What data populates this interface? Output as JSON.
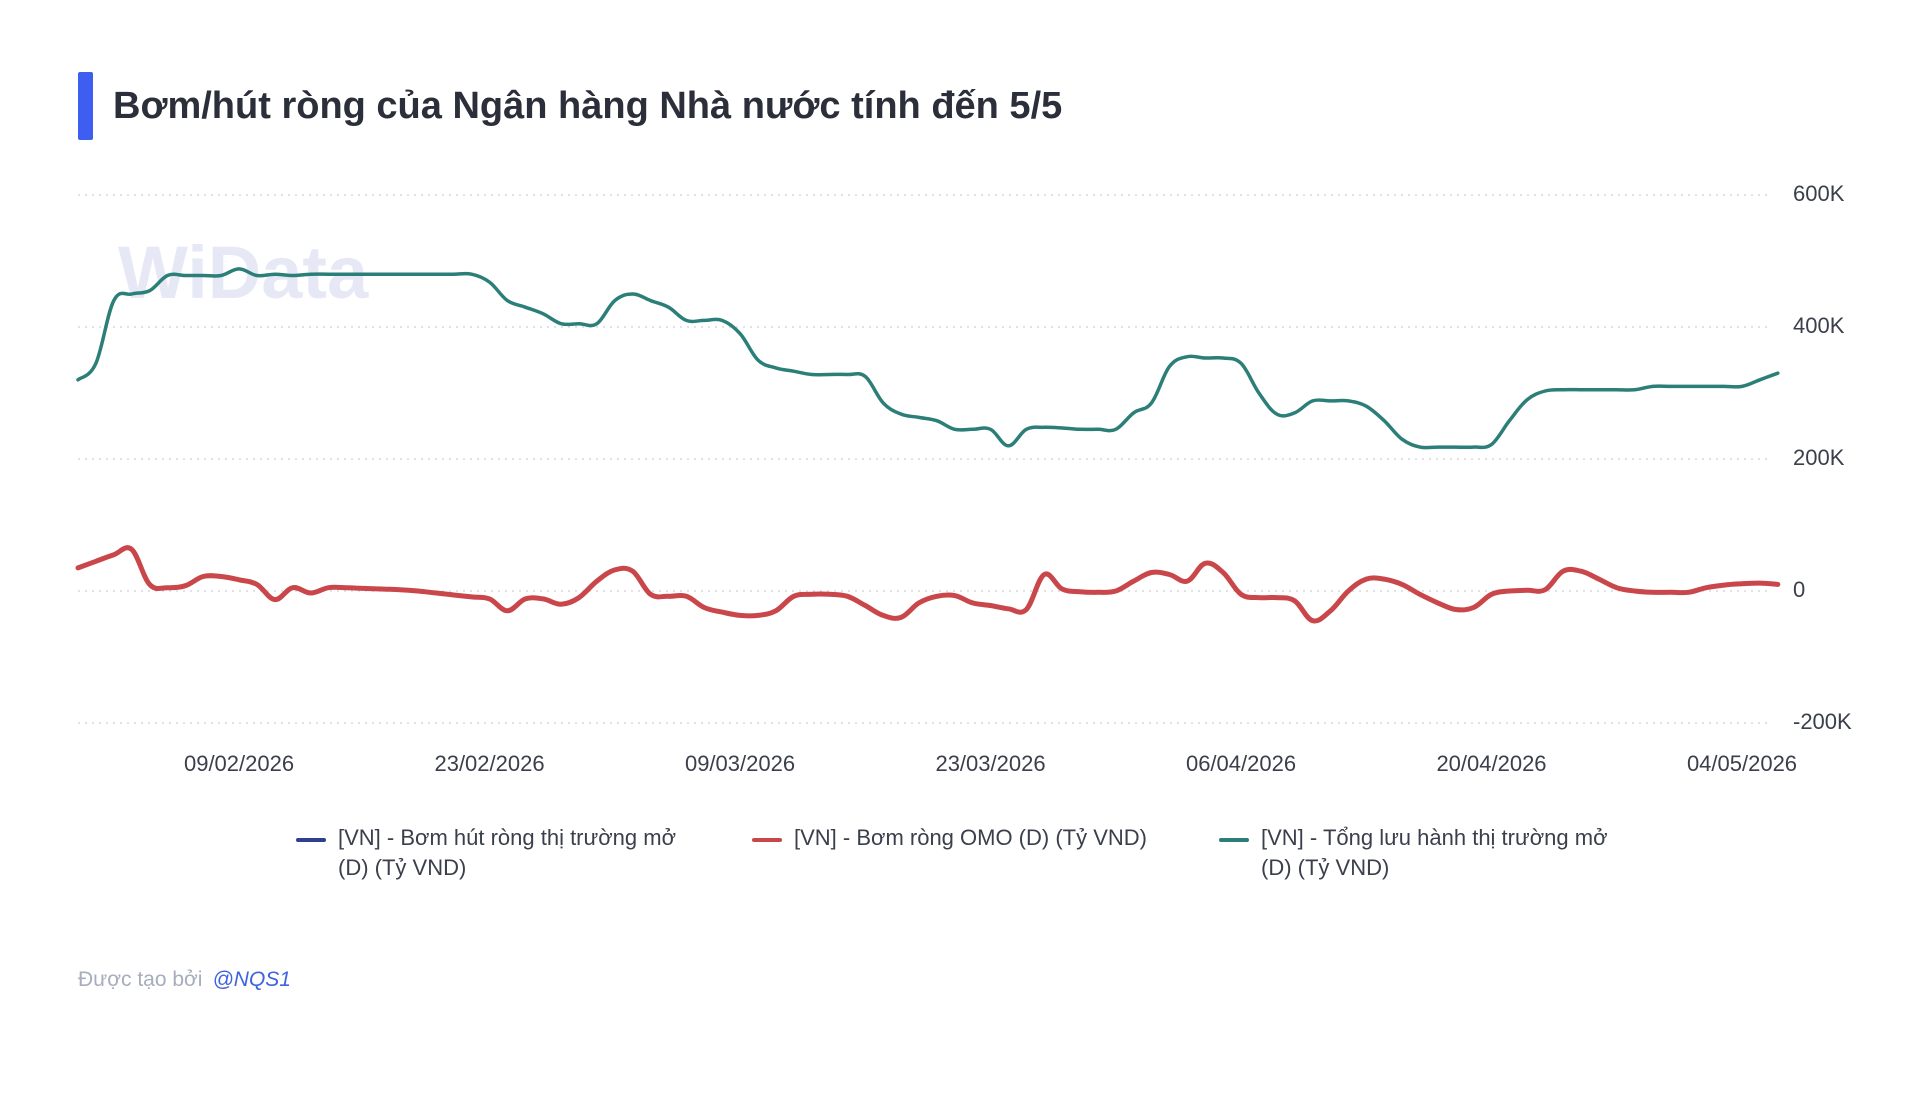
{
  "title": "Bơm/hút ròng của Ngân hàng Nhà nước tính đến 5/5",
  "colors": {
    "accent": "#3d5ef0",
    "series_net": "#2e3f8f",
    "series_omo": "#c9474a",
    "series_total": "#2b7f78",
    "grid": "#d6d9e0",
    "watermark": "#e6e9f5"
  },
  "watermark": "WiData",
  "legend": {
    "items": [
      {
        "label_line1": "[VN] - Bơm hút ròng thị trường mở",
        "label_line2": "(D) (Tỷ VND)"
      },
      {
        "label_line1": "[VN] - Bơm ròng OMO (D) (Tỷ VND)",
        "label_line2": ""
      },
      {
        "label_line1": "[VN] - Tổng lưu hành thị trường mở",
        "label_line2": "(D) (Tỷ VND)"
      }
    ]
  },
  "credit": {
    "prefix": "Được tạo bởi",
    "user": "@NQS1"
  },
  "chart_data": {
    "type": "line",
    "x_axis_type": "date",
    "x_ticks": [
      "09/02/2026",
      "23/02/2026",
      "09/03/2026",
      "23/03/2026",
      "06/04/2026",
      "20/04/2026",
      "04/05/2026"
    ],
    "x_tick_dates": [
      "2026-02-09",
      "2026-02-23",
      "2026-03-09",
      "2026-03-23",
      "2026-04-06",
      "2026-04-20",
      "2026-05-04"
    ],
    "xlim": [
      "2026-01-31",
      "2026-05-04"
    ],
    "y_axis_side": "right",
    "y_ticks": [
      -200000,
      0,
      200000,
      400000,
      600000
    ],
    "y_tick_labels": [
      "-200K",
      "0",
      "200K",
      "400K",
      "600K"
    ],
    "ylim": [
      -200000,
      600000
    ],
    "grid": "horizontal-dotted",
    "legend_position": "bottom",
    "series": [
      {
        "name": "[VN] - Bơm hút ròng thị trường mở (D) (Tỷ VND)",
        "values": []
      },
      {
        "name": "[VN] - Bơm ròng OMO (D) (Tỷ VND)",
        "points": [
          [
            "2026-01-31",
            35000
          ],
          [
            "2026-02-01",
            45000
          ],
          [
            "2026-02-02",
            55000
          ],
          [
            "2026-02-03",
            63000
          ],
          [
            "2026-02-04",
            10000
          ],
          [
            "2026-02-05",
            5000
          ],
          [
            "2026-02-06",
            8000
          ],
          [
            "2026-02-07",
            22000
          ],
          [
            "2026-02-08",
            22000
          ],
          [
            "2026-02-09",
            17000
          ],
          [
            "2026-02-10",
            10000
          ],
          [
            "2026-02-11",
            -13000
          ],
          [
            "2026-02-12",
            5000
          ],
          [
            "2026-02-13",
            -3000
          ],
          [
            "2026-02-14",
            5000
          ],
          [
            "2026-02-15",
            5000
          ],
          [
            "2026-02-16",
            4000
          ],
          [
            "2026-02-17",
            3000
          ],
          [
            "2026-02-18",
            2000
          ],
          [
            "2026-02-19",
            0
          ],
          [
            "2026-02-20",
            -3000
          ],
          [
            "2026-02-21",
            -6000
          ],
          [
            "2026-02-22",
            -9000
          ],
          [
            "2026-02-23",
            -12000
          ],
          [
            "2026-02-24",
            -30000
          ],
          [
            "2026-02-25",
            -12000
          ],
          [
            "2026-02-26",
            -12000
          ],
          [
            "2026-02-27",
            -20000
          ],
          [
            "2026-02-28",
            -10000
          ],
          [
            "2026-03-01",
            15000
          ],
          [
            "2026-03-02",
            32000
          ],
          [
            "2026-03-03",
            30000
          ],
          [
            "2026-03-04",
            -5000
          ],
          [
            "2026-03-05",
            -8000
          ],
          [
            "2026-03-06",
            -8000
          ],
          [
            "2026-03-07",
            -25000
          ],
          [
            "2026-03-08",
            -32000
          ],
          [
            "2026-03-09",
            -37000
          ],
          [
            "2026-03-10",
            -37000
          ],
          [
            "2026-03-11",
            -30000
          ],
          [
            "2026-03-12",
            -8000
          ],
          [
            "2026-03-13",
            -5000
          ],
          [
            "2026-03-14",
            -5000
          ],
          [
            "2026-03-15",
            -8000
          ],
          [
            "2026-03-16",
            -22000
          ],
          [
            "2026-03-17",
            -37000
          ],
          [
            "2026-03-18",
            -40000
          ],
          [
            "2026-03-19",
            -18000
          ],
          [
            "2026-03-20",
            -8000
          ],
          [
            "2026-03-21",
            -7000
          ],
          [
            "2026-03-22",
            -18000
          ],
          [
            "2026-03-23",
            -22000
          ],
          [
            "2026-03-24",
            -27000
          ],
          [
            "2026-03-25",
            -28000
          ],
          [
            "2026-03-26",
            25000
          ],
          [
            "2026-03-27",
            3000
          ],
          [
            "2026-03-28",
            -1000
          ],
          [
            "2026-03-29",
            -2000
          ],
          [
            "2026-03-30",
            0
          ],
          [
            "2026-03-31",
            15000
          ],
          [
            "2026-04-01",
            28000
          ],
          [
            "2026-04-02",
            25000
          ],
          [
            "2026-04-03",
            15000
          ],
          [
            "2026-04-04",
            42000
          ],
          [
            "2026-04-05",
            28000
          ],
          [
            "2026-04-06",
            -5000
          ],
          [
            "2026-04-07",
            -10000
          ],
          [
            "2026-04-08",
            -10000
          ],
          [
            "2026-04-09",
            -15000
          ],
          [
            "2026-04-10",
            -45000
          ],
          [
            "2026-04-11",
            -30000
          ],
          [
            "2026-04-12",
            0
          ],
          [
            "2026-04-13",
            18000
          ],
          [
            "2026-04-14",
            18000
          ],
          [
            "2026-04-15",
            10000
          ],
          [
            "2026-04-16",
            -5000
          ],
          [
            "2026-04-17",
            -18000
          ],
          [
            "2026-04-18",
            -28000
          ],
          [
            "2026-04-19",
            -25000
          ],
          [
            "2026-04-20",
            -5000
          ],
          [
            "2026-04-21",
            0
          ],
          [
            "2026-04-22",
            1000
          ],
          [
            "2026-04-23",
            2000
          ],
          [
            "2026-04-24",
            30000
          ],
          [
            "2026-04-25",
            30000
          ],
          [
            "2026-04-26",
            18000
          ],
          [
            "2026-04-27",
            5000
          ],
          [
            "2026-04-28",
            0
          ],
          [
            "2026-04-29",
            -2000
          ],
          [
            "2026-04-30",
            -2000
          ],
          [
            "2026-05-01",
            -2000
          ],
          [
            "2026-05-02",
            5000
          ],
          [
            "2026-05-03",
            9000
          ],
          [
            "2026-05-04",
            11000
          ],
          [
            "2026-05-05",
            12000
          ],
          [
            "2026-05-06",
            10000
          ]
        ]
      },
      {
        "name": "[VN] - Tổng lưu hành thị trường mở (D) (Tỷ VND)",
        "points": [
          [
            "2026-01-31",
            320000
          ],
          [
            "2026-02-01",
            345000
          ],
          [
            "2026-02-02",
            440000
          ],
          [
            "2026-02-03",
            450000
          ],
          [
            "2026-02-04",
            455000
          ],
          [
            "2026-02-05",
            478000
          ],
          [
            "2026-02-06",
            478000
          ],
          [
            "2026-02-07",
            478000
          ],
          [
            "2026-02-08",
            478000
          ],
          [
            "2026-02-09",
            488000
          ],
          [
            "2026-02-10",
            478000
          ],
          [
            "2026-02-11",
            480000
          ],
          [
            "2026-02-12",
            478000
          ],
          [
            "2026-02-13",
            480000
          ],
          [
            "2026-02-14",
            480000
          ],
          [
            "2026-02-15",
            480000
          ],
          [
            "2026-02-16",
            480000
          ],
          [
            "2026-02-17",
            480000
          ],
          [
            "2026-02-18",
            480000
          ],
          [
            "2026-02-19",
            480000
          ],
          [
            "2026-02-20",
            480000
          ],
          [
            "2026-02-21",
            480000
          ],
          [
            "2026-02-22",
            480000
          ],
          [
            "2026-02-23",
            468000
          ],
          [
            "2026-02-24",
            440000
          ],
          [
            "2026-02-25",
            430000
          ],
          [
            "2026-02-26",
            420000
          ],
          [
            "2026-02-27",
            405000
          ],
          [
            "2026-02-28",
            405000
          ],
          [
            "2026-03-01",
            405000
          ],
          [
            "2026-03-02",
            440000
          ],
          [
            "2026-03-03",
            450000
          ],
          [
            "2026-03-04",
            440000
          ],
          [
            "2026-03-05",
            430000
          ],
          [
            "2026-03-06",
            410000
          ],
          [
            "2026-03-07",
            410000
          ],
          [
            "2026-03-08",
            410000
          ],
          [
            "2026-03-09",
            390000
          ],
          [
            "2026-03-10",
            350000
          ],
          [
            "2026-03-11",
            338000
          ],
          [
            "2026-03-12",
            333000
          ],
          [
            "2026-03-13",
            328000
          ],
          [
            "2026-03-14",
            328000
          ],
          [
            "2026-03-15",
            328000
          ],
          [
            "2026-03-16",
            325000
          ],
          [
            "2026-03-17",
            285000
          ],
          [
            "2026-03-18",
            268000
          ],
          [
            "2026-03-19",
            263000
          ],
          [
            "2026-03-20",
            258000
          ],
          [
            "2026-03-21",
            245000
          ],
          [
            "2026-03-22",
            245000
          ],
          [
            "2026-03-23",
            245000
          ],
          [
            "2026-03-24",
            220000
          ],
          [
            "2026-03-25",
            245000
          ],
          [
            "2026-03-26",
            248000
          ],
          [
            "2026-03-27",
            247000
          ],
          [
            "2026-03-28",
            245000
          ],
          [
            "2026-03-29",
            245000
          ],
          [
            "2026-03-30",
            245000
          ],
          [
            "2026-03-31",
            270000
          ],
          [
            "2026-04-01",
            285000
          ],
          [
            "2026-04-02",
            340000
          ],
          [
            "2026-04-03",
            355000
          ],
          [
            "2026-04-04",
            353000
          ],
          [
            "2026-04-05",
            353000
          ],
          [
            "2026-04-06",
            345000
          ],
          [
            "2026-04-07",
            300000
          ],
          [
            "2026-04-08",
            268000
          ],
          [
            "2026-04-09",
            270000
          ],
          [
            "2026-04-10",
            288000
          ],
          [
            "2026-04-11",
            288000
          ],
          [
            "2026-04-12",
            288000
          ],
          [
            "2026-04-13",
            280000
          ],
          [
            "2026-04-14",
            258000
          ],
          [
            "2026-04-15",
            230000
          ],
          [
            "2026-04-16",
            218000
          ],
          [
            "2026-04-17",
            218000
          ],
          [
            "2026-04-18",
            218000
          ],
          [
            "2026-04-19",
            218000
          ],
          [
            "2026-04-20",
            222000
          ],
          [
            "2026-04-21",
            258000
          ],
          [
            "2026-04-22",
            290000
          ],
          [
            "2026-04-23",
            303000
          ],
          [
            "2026-04-24",
            305000
          ],
          [
            "2026-04-25",
            305000
          ],
          [
            "2026-04-26",
            305000
          ],
          [
            "2026-04-27",
            305000
          ],
          [
            "2026-04-28",
            305000
          ],
          [
            "2026-04-29",
            310000
          ],
          [
            "2026-04-30",
            310000
          ],
          [
            "2026-05-01",
            310000
          ],
          [
            "2026-05-02",
            310000
          ],
          [
            "2026-05-03",
            310000
          ],
          [
            "2026-05-04",
            310000
          ],
          [
            "2026-05-05",
            320000
          ],
          [
            "2026-05-06",
            330000
          ]
        ]
      }
    ]
  }
}
